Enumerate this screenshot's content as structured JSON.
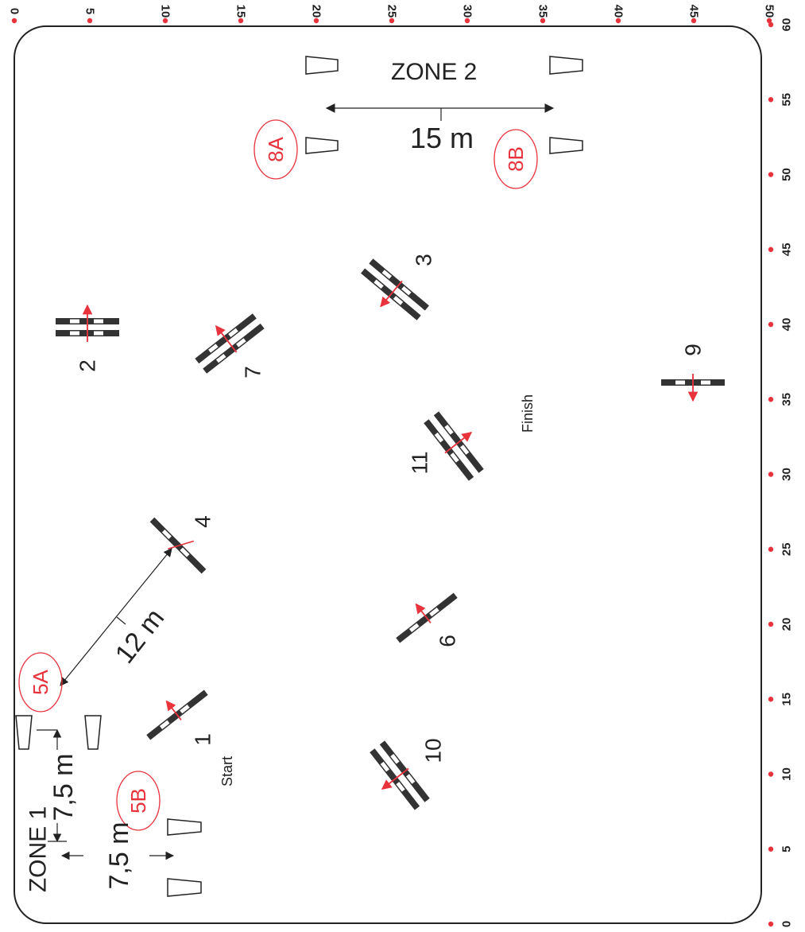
{
  "top_ticks": [
    "0",
    "5",
    "10",
    "15",
    "20",
    "25",
    "30",
    "35",
    "40",
    "45",
    "50"
  ],
  "right_ticks": [
    "0",
    "5",
    "10",
    "15",
    "20",
    "25",
    "30",
    "35",
    "40",
    "45",
    "50",
    "55",
    "60"
  ],
  "zones": {
    "zone1": "ZONE 1",
    "zone2": "ZONE 2"
  },
  "distances": {
    "d15": "15 m",
    "d12": "12 m",
    "d75a": "7,5 m",
    "d75b": "7,5 m"
  },
  "obstacles": [
    {
      "label": "1"
    },
    {
      "label": "2"
    },
    {
      "label": "3"
    },
    {
      "label": "4"
    },
    {
      "label": "6"
    },
    {
      "label": "7"
    },
    {
      "label": "9"
    },
    {
      "label": "10"
    },
    {
      "label": "11"
    }
  ],
  "markers": {
    "m5A": "5A",
    "m5B": "5B",
    "m8A": "8A",
    "m8B": "8B"
  },
  "start_label": "Start",
  "finish_label": "Finish",
  "colors": {
    "accent": "#e8323c",
    "pole": "#333333",
    "outline": "#222222"
  }
}
